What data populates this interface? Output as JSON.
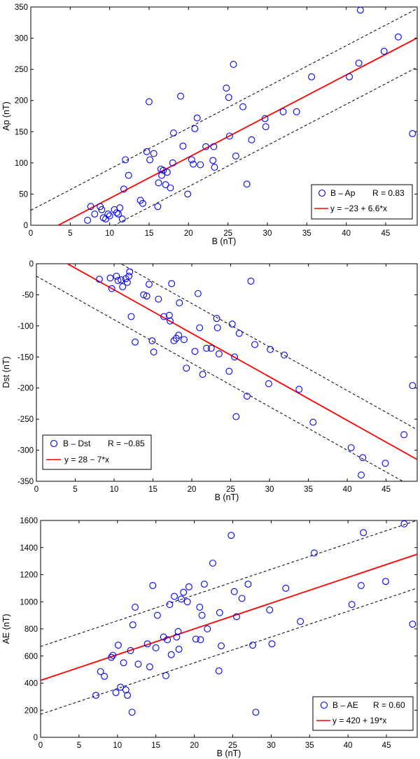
{
  "chart_data": [
    {
      "type": "scatter",
      "xlabel": "B (nT)",
      "ylabel": "Ap (nT)",
      "xlim": [
        0,
        49
      ],
      "ylim": [
        0,
        350
      ],
      "xticks": [
        0,
        5,
        10,
        15,
        20,
        25,
        30,
        35,
        40,
        45
      ],
      "yticks": [
        0,
        50,
        100,
        150,
        200,
        250,
        300,
        350
      ],
      "legend_position": "bottom-right",
      "series": [
        {
          "name": "B – Ap",
          "marker": "circle",
          "color": "#0000ff",
          "x": [
            7.2,
            7.6,
            8.1,
            8.8,
            9.0,
            9.2,
            9.5,
            9.8,
            10.0,
            10.6,
            10.9,
            11.1,
            11.3,
            11.6,
            11.8,
            12.0,
            12.4,
            13.9,
            14.2,
            14.7,
            15.0,
            15.1,
            15.6,
            16.1,
            16.2,
            16.5,
            16.6,
            16.8,
            17.1,
            17.3,
            17.7,
            18.0,
            18.1,
            19.0,
            19.3,
            19.9,
            20.4,
            20.6,
            20.8,
            21.1,
            21.5,
            22.2,
            23.1,
            23.2,
            23.3,
            24.8,
            25.1,
            25.2,
            25.7,
            26.0,
            26.9,
            27.4,
            28.0,
            29.7,
            29.8,
            32.0,
            33.7,
            35.6,
            40.4,
            41.6,
            41.8,
            44.8,
            46.6,
            48.4
          ],
          "y": [
            8,
            30,
            18,
            30,
            25,
            12,
            10,
            18,
            15,
            25,
            20,
            18,
            28,
            10,
            58,
            105,
            80,
            40,
            35,
            118,
            198,
            105,
            115,
            30,
            68,
            90,
            80,
            88,
            65,
            85,
            60,
            100,
            148,
            207,
            127,
            50,
            105,
            98,
            155,
            172,
            97,
            126,
            104,
            126,
            93,
            220,
            205,
            143,
            258,
            111,
            190,
            66,
            137,
            171,
            158,
            182,
            182,
            238,
            238,
            260,
            345,
            279,
            302,
            147
          ]
        },
        {
          "name": "y = −23 + 6.6*x",
          "type": "line",
          "color": "#ff0000",
          "intercept": -23,
          "slope": 6.6
        },
        {
          "name": "upper bound",
          "type": "line",
          "style": "dashed",
          "color": "#000000",
          "intercept": 24,
          "slope": 6.6
        },
        {
          "name": "lower bound",
          "type": "line",
          "style": "dashed",
          "color": "#000000",
          "intercept": -70,
          "slope": 6.6
        }
      ],
      "legend": {
        "scatter_label": "B – Ap",
        "r_label": "R = 0.83",
        "fit_label": "y = −23 + 6.6*x"
      }
    },
    {
      "type": "scatter",
      "xlabel": "B (nT)",
      "ylabel": "Dst (nT)",
      "xlim": [
        0,
        49
      ],
      "ylim": [
        -350,
        0
      ],
      "xticks": [
        0,
        5,
        10,
        15,
        20,
        25,
        30,
        35,
        40,
        45
      ],
      "yticks": [
        0,
        -50,
        -100,
        -150,
        -200,
        -250,
        -300,
        -350
      ],
      "legend_position": "bottom-left",
      "series": [
        {
          "name": "B – Dst",
          "marker": "circle",
          "color": "#0000ff",
          "x": [
            8.1,
            9.5,
            9.7,
            10.3,
            10.5,
            10.9,
            11.1,
            11.5,
            11.7,
            11.9,
            12.0,
            12.2,
            12.7,
            13.8,
            14.2,
            14.5,
            14.9,
            15.1,
            15.7,
            16.4,
            17.1,
            17.2,
            17.4,
            17.7,
            18.0,
            18.3,
            18.4,
            19.0,
            19.3,
            20.4,
            20.8,
            21.0,
            21.4,
            21.9,
            22.5,
            23.2,
            23.3,
            23.5,
            24.8,
            25.2,
            25.5,
            25.7,
            26.1,
            27.1,
            27.6,
            28.1,
            29.9,
            30.1,
            31.9,
            33.8,
            35.6,
            40.5,
            42.0,
            41.8,
            44.9,
            47.3,
            48.4
          ],
          "y": [
            -25,
            -23,
            -40,
            -20,
            -27,
            -26,
            -37,
            -24,
            -30,
            -20,
            -13,
            -85,
            -126,
            -50,
            -52,
            -33,
            -124,
            -142,
            -57,
            -85,
            -83,
            -92,
            -32,
            -124,
            -120,
            -115,
            -63,
            -122,
            -168,
            -141,
            -48,
            -103,
            -178,
            -136,
            -136,
            -88,
            -103,
            -145,
            -173,
            -97,
            -150,
            -246,
            -112,
            -213,
            -28,
            -130,
            -193,
            -138,
            -147,
            -202,
            -255,
            -296,
            -312,
            -340,
            -321,
            -275,
            -196
          ]
        },
        {
          "name": "y = 28 − 7*x",
          "type": "line",
          "color": "#ff0000",
          "intercept": 28,
          "slope": -7
        },
        {
          "name": "upper bound",
          "type": "line",
          "style": "dashed",
          "color": "#000000",
          "intercept": 76,
          "slope": -7
        },
        {
          "name": "lower bound",
          "type": "line",
          "style": "dashed",
          "color": "#000000",
          "intercept": -20,
          "slope": -7
        }
      ],
      "legend": {
        "scatter_label": "B – Dst",
        "r_label": "R = −0.85",
        "fit_label": "y = 28 − 7*x"
      }
    },
    {
      "type": "scatter",
      "xlabel": "B (nT)",
      "ylabel": "AE (nT)",
      "xlim": [
        0,
        49
      ],
      "ylim": [
        0,
        1600
      ],
      "xticks": [
        0,
        5,
        10,
        15,
        20,
        25,
        30,
        35,
        40,
        45
      ],
      "yticks": [
        0,
        200,
        400,
        600,
        800,
        1000,
        1200,
        1400,
        1600
      ],
      "legend_position": "bottom-right",
      "series": [
        {
          "name": "B – AE",
          "marker": "circle",
          "color": "#0000ff",
          "x": [
            7.2,
            7.8,
            8.3,
            9.2,
            9.4,
            9.8,
            10.1,
            10.4,
            10.8,
            11.1,
            11.3,
            11.7,
            11.9,
            12.0,
            12.3,
            12.7,
            13.9,
            14.2,
            14.6,
            15.0,
            15.2,
            16.0,
            16.3,
            16.5,
            16.8,
            17.0,
            17.4,
            17.7,
            17.9,
            18.0,
            18.3,
            18.6,
            19.1,
            19.3,
            20.2,
            20.7,
            20.8,
            21.0,
            21.3,
            21.7,
            22.4,
            23.2,
            23.3,
            23.5,
            24.8,
            25.2,
            25.5,
            26.2,
            27.0,
            27.6,
            28.0,
            29.8,
            30.1,
            31.9,
            33.8,
            35.6,
            40.5,
            41.7,
            42.0,
            44.9,
            47.3,
            48.4
          ],
          "y": [
            310,
            485,
            450,
            590,
            605,
            330,
            680,
            370,
            550,
            350,
            310,
            640,
            185,
            830,
            960,
            540,
            690,
            520,
            1120,
            660,
            900,
            740,
            455,
            720,
            980,
            610,
            1040,
            740,
            780,
            650,
            1020,
            1070,
            1000,
            1110,
            725,
            960,
            720,
            900,
            1130,
            800,
            1285,
            490,
            920,
            675,
            1490,
            1075,
            890,
            1025,
            1130,
            680,
            185,
            940,
            690,
            1100,
            855,
            1360,
            980,
            1120,
            1510,
            1150,
            1575,
            835
          ]
        },
        {
          "name": "y = 420 + 19*x",
          "type": "line",
          "color": "#ff0000",
          "intercept": 420,
          "slope": 19
        },
        {
          "name": "upper bound",
          "type": "line",
          "style": "dashed",
          "color": "#000000",
          "intercept": 670,
          "slope": 19
        },
        {
          "name": "lower bound",
          "type": "line",
          "style": "dashed",
          "color": "#000000",
          "intercept": 170,
          "slope": 19
        }
      ],
      "legend": {
        "scatter_label": "B – AE",
        "r_label": "R = 0.60",
        "fit_label": "y = 420 + 19*x"
      }
    }
  ]
}
